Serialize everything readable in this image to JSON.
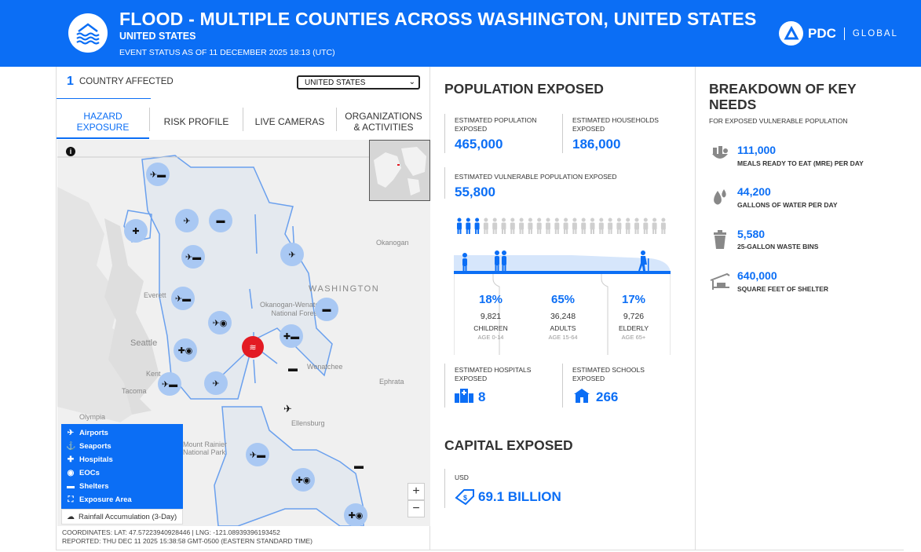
{
  "header": {
    "title": "FLOOD - MULTIPLE COUNTIES ACROSS WASHINGTON, UNITED STATES",
    "subtitle": "UNITED STATES",
    "status": "EVENT STATUS AS OF 11 DECEMBER 2025 18:13 (UTC)",
    "brand": "PDC",
    "brand_global": "GLOBAL",
    "accent": "#0b6ef5"
  },
  "countries": {
    "count": "1",
    "label": "COUNTRY AFFECTED",
    "selected": "UNITED STATES"
  },
  "tabs": [
    {
      "label": "HAZARD EXPOSURE"
    },
    {
      "label": "RISK PROFILE"
    },
    {
      "label": "LIVE CAMERAS"
    },
    {
      "label": "ORGANIZATIONS & ACTIVITIES"
    }
  ],
  "map": {
    "labels": {
      "washington": "WASHINGTON",
      "okanogan": "Okanogan",
      "forest": "Okanogan-Wenatchee National Forest",
      "everett": "Everett",
      "seattle": "Seattle",
      "kent": "Kent",
      "tacoma": "Tacoma",
      "olympia": "Olympia",
      "wenatchee": "Wenatchee",
      "ephrata": "Ephrata",
      "ellensburg": "Ellensburg",
      "rainier": "Mount Rainier National Park"
    },
    "legend": [
      {
        "label": "Airports",
        "icon": "airplane-icon"
      },
      {
        "label": "Seaports",
        "icon": "anchor-icon"
      },
      {
        "label": "Hospitals",
        "icon": "hospital-icon"
      },
      {
        "label": "EOCs",
        "icon": "eoc-icon"
      },
      {
        "label": "Shelters",
        "icon": "shelter-icon"
      },
      {
        "label": "Exposure Area",
        "icon": "exposure-area-icon"
      }
    ],
    "rainfall": "Rainfall Accumulation (3-Day)",
    "zoom_in": "+",
    "zoom_out": "−",
    "info": "i",
    "coordinates": "COORDINATES: LAT: 47.57223940928446 | LNG: -121.08939396193452",
    "reported": "REPORTED: THU DEC 11 2025 15:38:58 GMT-0500 (EASTERN STANDARD TIME)"
  },
  "population": {
    "title": "POPULATION EXPOSED",
    "est_pop_label": "ESTIMATED POPULATION EXPOSED",
    "est_pop_value": "465,000",
    "est_hh_label": "ESTIMATED HOUSEHOLDS EXPOSED",
    "est_hh_value": "186,000",
    "vuln_label": "ESTIMATED VULNERABLE POPULATION EXPOSED",
    "vuln_value": "55,800",
    "groups": [
      {
        "pct": "18%",
        "count": "9,821",
        "label": "CHILDREN",
        "range": "AGE 0-14"
      },
      {
        "pct": "65%",
        "count": "36,248",
        "label": "ADULTS",
        "range": "AGE 15-64"
      },
      {
        "pct": "17%",
        "count": "9,726",
        "label": "ELDERLY",
        "range": "AGE 65+"
      }
    ],
    "hospitals_label": "ESTIMATED HOSPITALS EXPOSED",
    "hospitals_value": "8",
    "schools_label": "ESTIMATED SCHOOLS EXPOSED",
    "schools_value": "266"
  },
  "capital": {
    "title": "CAPITAL EXPOSED",
    "currency": "USD",
    "value": "69.1 BILLION"
  },
  "needs": {
    "title": "BREAKDOWN OF KEY NEEDS",
    "subtitle": "FOR EXPOSED VULNERABLE POPULATION",
    "items": [
      {
        "value": "111,000",
        "label": "MEALS READY TO EAT (MRE) PER DAY",
        "icon": "meal-icon"
      },
      {
        "value": "44,200",
        "label": "GALLONS OF WATER PER DAY",
        "icon": "water-drop-icon"
      },
      {
        "value": "5,580",
        "label": "25-GALLON WASTE BINS",
        "icon": "waste-bin-icon"
      },
      {
        "value": "640,000",
        "label": "SQUARE FEET OF SHELTER",
        "icon": "shelter-icon"
      }
    ]
  }
}
